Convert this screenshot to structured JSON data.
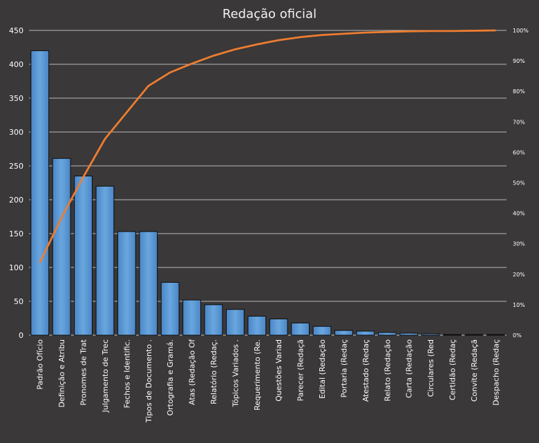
{
  "chart_data": {
    "type": "bar",
    "title": "Redação oficial",
    "categories": [
      "Padrão Ofício",
      "Definição e Atribu",
      "Pronomes de Trat",
      "Julgamento de Trec",
      "Fechos e Identific.",
      "Tipos de Documento .",
      "Ortografia e Gramá.",
      "Atas (Redação Of",
      "Relatório (Redaç.",
      "Tópicos Variados .",
      "Requerimento (Re.",
      "Questões Variad",
      "Parecer (Redaçã",
      "Edital (Redação",
      "Portaria (Redaç",
      "Atestado (Redaç",
      "Relato (Redação",
      "Carta (Redação",
      "Circulares (Red",
      "Certidão (Redaç",
      "Convite (Redaçã",
      "Despacho (Redaç"
    ],
    "series": [
      {
        "type": "bar",
        "values": [
          420,
          261,
          235,
          220,
          153,
          153,
          78,
          52,
          45,
          38,
          28,
          24,
          18,
          13,
          7,
          6,
          4,
          3,
          2,
          1,
          1,
          1
        ]
      },
      {
        "type": "line",
        "axis": "right",
        "values": [
          23.8,
          38.6,
          51.9,
          64.4,
          73.1,
          81.8,
          86.2,
          89.1,
          91.7,
          93.8,
          95.4,
          96.8,
          97.8,
          98.5,
          98.9,
          99.3,
          99.5,
          99.7,
          99.8,
          99.8,
          99.9,
          100
        ]
      }
    ],
    "ylim": [
      0,
      450
    ],
    "yticks": [
      0,
      50,
      100,
      150,
      200,
      250,
      300,
      350,
      400,
      450
    ],
    "y2lim": [
      0,
      100
    ],
    "y2ticks": [
      "0%",
      "10%",
      "20%",
      "30%",
      "40%",
      "50%",
      "60%",
      "70%",
      "80%",
      "90%",
      "100%"
    ],
    "grid": true,
    "legend": "none",
    "colors": {
      "background": "#3a3838",
      "bar": "#5b9bd5",
      "bar_edge": "#0d0d0d",
      "line": "#ed7d31",
      "grid": "#e6e6e6",
      "text": "#ffffff"
    }
  }
}
